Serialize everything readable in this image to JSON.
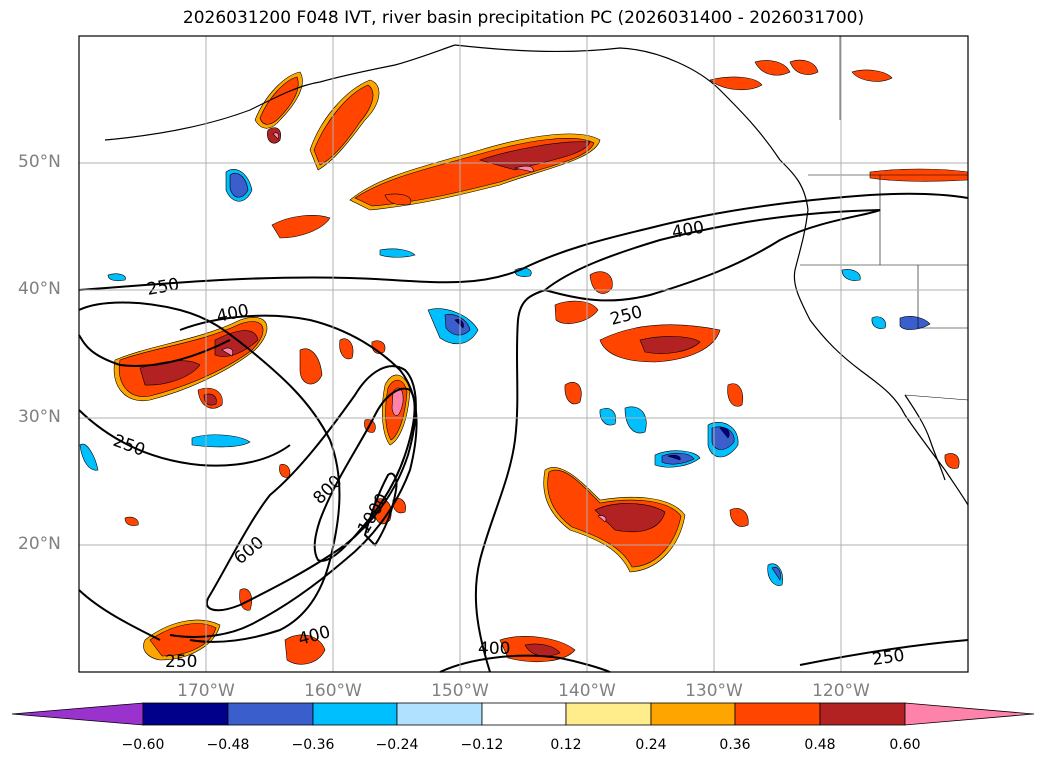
{
  "title": "2026031200 F048 IVT, river basin precipitation PC (2026031400 - 2026031700)",
  "axes": {
    "lat_labels": [
      "50°N",
      "40°N",
      "30°N",
      "20°N"
    ],
    "lon_labels": [
      "170°W",
      "160°W",
      "150°W",
      "140°W",
      "130°W",
      "120°W"
    ],
    "lon_range": [
      -180,
      -110
    ],
    "lat_range": [
      10,
      60
    ],
    "grid": true
  },
  "contours": {
    "color": "#000000",
    "labels": [
      "250",
      "400",
      "600",
      "800",
      "1000"
    ]
  },
  "colorbar": {
    "colors": [
      "#9a32cd",
      "#00008b",
      "#3a5fcd",
      "#00bfff",
      "#b0e2ff",
      "#ffffff",
      "#ffec8b",
      "#ffa500",
      "#ff4500",
      "#b22222",
      "#ff82ab"
    ],
    "ticks": [
      "−0.60",
      "−0.48",
      "−0.36",
      "−0.24",
      "−0.12",
      "0.12",
      "0.24",
      "0.36",
      "0.48",
      "0.60"
    ],
    "extend": "both"
  }
}
